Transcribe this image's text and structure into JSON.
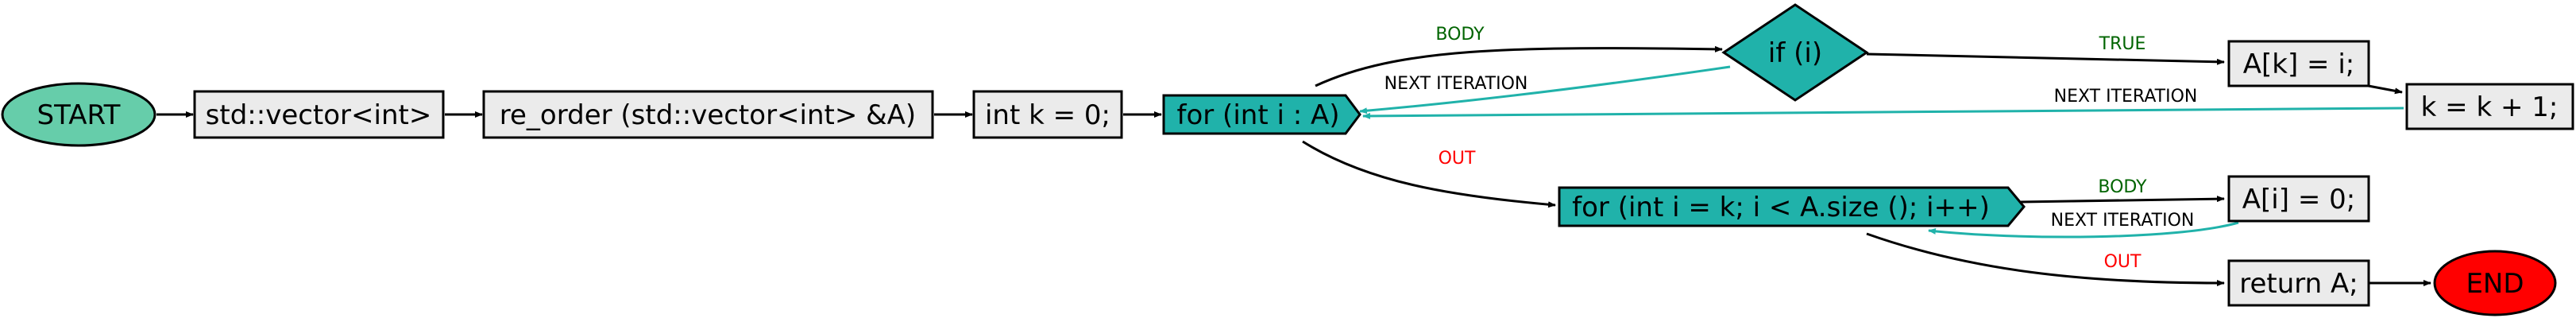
{
  "colors": {
    "start_fill": "#66cdaa",
    "end_fill": "#ff0000",
    "box_fill": "#ebebeb",
    "loop_fill": "#20b2aa",
    "decision_fill": "#20b2aa",
    "stroke": "#000000",
    "back_edge": "#20b2aa",
    "label_green": "#006400",
    "label_red": "#ff0000",
    "label_black": "#000000"
  },
  "nodes": {
    "start": "START",
    "vector_decl": "std::vector<int>",
    "re_order": "re_order (std::vector<int> &A)",
    "int_k": "int k = 0;",
    "for_outer": "for (int i : A)",
    "if_i": "if (i)",
    "assign_ak": "A[k] = i;",
    "k_inc": "k = k + 1;",
    "for_inner": "for (int i = k; i < A.size (); i++)",
    "assign_ai": "A[i] = 0;",
    "return_a": "return A;",
    "end": "END"
  },
  "edge_labels": {
    "outer_body": "BODY",
    "outer_next": "NEXT ITERATION",
    "outer_out": "OUT",
    "if_true": "TRUE",
    "k_next": "NEXT ITERATION",
    "inner_body": "BODY",
    "inner_next": "NEXT ITERATION",
    "inner_out": "OUT"
  }
}
